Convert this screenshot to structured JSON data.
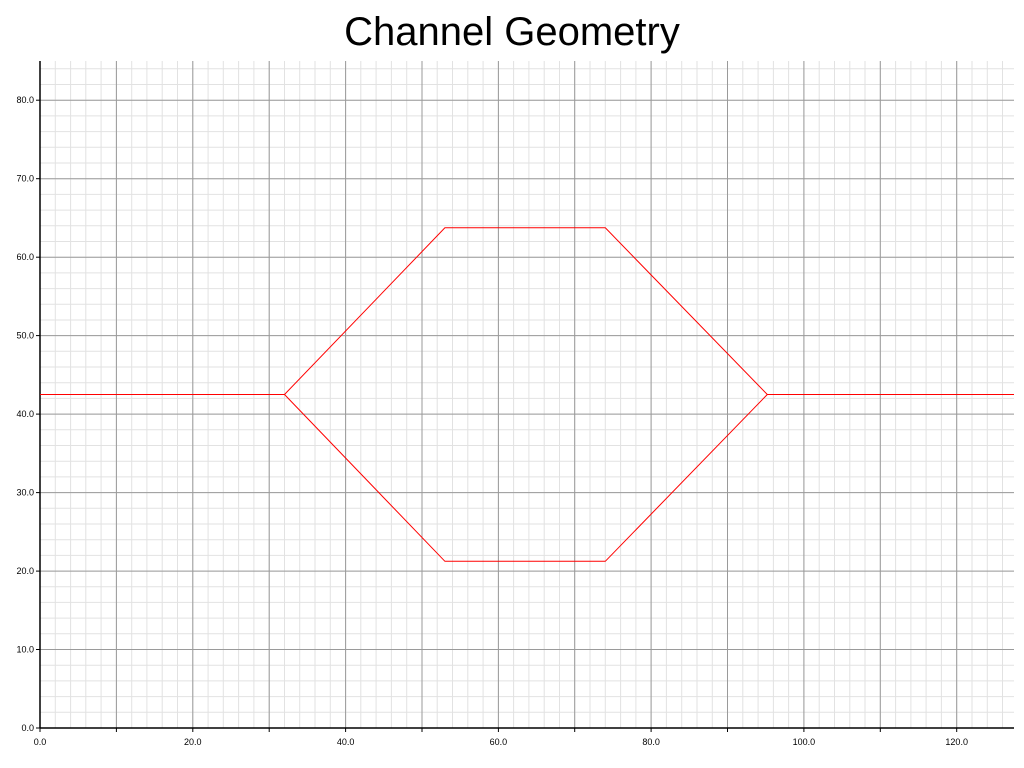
{
  "chart_data": {
    "type": "line",
    "title": "Channel Geometry",
    "xlabel": "",
    "ylabel": "",
    "xlim": [
      0,
      127.5
    ],
    "ylim": [
      0,
      85
    ],
    "grid": true,
    "x_ticks": [
      "0.0",
      "20.0",
      "40.0",
      "60.0",
      "80.0",
      "100.0",
      "120.0"
    ],
    "y_ticks": [
      "0.0",
      "10.0",
      "20.0",
      "30.0",
      "40.0",
      "50.0",
      "60.0",
      "70.0",
      "80.0"
    ],
    "line_color": "#ff0000",
    "series": [
      {
        "values": [
          [
            0,
            42.5
          ],
          [
            32,
            42.5
          ],
          [
            53,
            63.75
          ],
          [
            74,
            63.75
          ],
          [
            95.2,
            42.5
          ],
          [
            127.5,
            42.5
          ]
        ]
      },
      {
        "values": [
          [
            32,
            42.5
          ],
          [
            53,
            21.25
          ],
          [
            74,
            21.25
          ],
          [
            95.2,
            42.5
          ]
        ]
      }
    ]
  }
}
